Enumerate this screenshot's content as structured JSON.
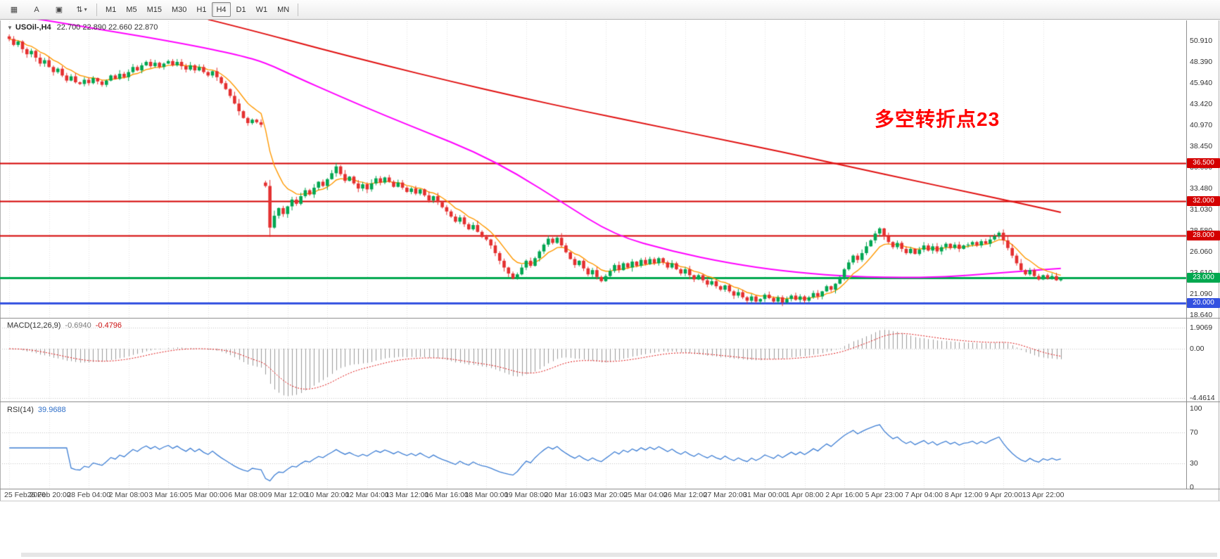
{
  "toolbar": {
    "left_buttons": [
      {
        "name": "chart-grid-icon",
        "glyph": "▦"
      },
      {
        "name": "annotate-a-button",
        "glyph": "A"
      },
      {
        "name": "text-tool-icon",
        "glyph": "▣"
      },
      {
        "name": "cycle-periods-icon",
        "glyph": "⇅",
        "caret": "▾"
      }
    ],
    "timeframes": [
      {
        "label": "M1"
      },
      {
        "label": "M5"
      },
      {
        "label": "M15"
      },
      {
        "label": "M30"
      },
      {
        "label": "H1"
      },
      {
        "label": "H4",
        "active": true
      },
      {
        "label": "D1"
      },
      {
        "label": "W1"
      },
      {
        "label": "MN"
      }
    ]
  },
  "header": {
    "dropdown_glyph": "▼",
    "symbol": "USOil-,H4",
    "ohlc": "22.700 22.890 22.660 22.870"
  },
  "annotation": {
    "text": "多空转折点23",
    "color": "#ff0000"
  },
  "price_scale": {
    "ticks": [
      "50.910",
      "48.390",
      "45.940",
      "43.420",
      "40.970",
      "38.450",
      "36.000",
      "33.480",
      "31.030",
      "28.580",
      "26.060",
      "23.610",
      "21.090",
      "18.640"
    ]
  },
  "level_lines": [
    {
      "price": 36.5,
      "label": "36.500",
      "color": "#d40000",
      "width": 2
    },
    {
      "price": 32.0,
      "label": "32.000",
      "color": "#d40000",
      "width": 2
    },
    {
      "price": 28.0,
      "label": "28.000",
      "color": "#d40000",
      "width": 2
    },
    {
      "price": 23.0,
      "label": "23.000",
      "color": "#00a84f",
      "width": 3
    },
    {
      "price": 20.0,
      "label": "20.000",
      "color": "#3351e0",
      "width": 3
    }
  ],
  "chart_data": {
    "type": "candlestick",
    "symbol": "USOil-",
    "timeframe": "H4",
    "visible_price_range": [
      18.2,
      53.2
    ],
    "candle_up_color": "#00a651",
    "candle_down_color": "#e43030",
    "closes": [
      51.1,
      50.4,
      50.8,
      49.9,
      49.3,
      49.7,
      48.9,
      48.2,
      48.6,
      47.8,
      47.2,
      47.6,
      46.8,
      46.2,
      46.7,
      46.0,
      45.8,
      46.3,
      45.9,
      46.5,
      46.1,
      45.7,
      46.2,
      46.8,
      46.4,
      47.0,
      46.6,
      47.2,
      47.8,
      47.4,
      48.0,
      48.4,
      47.9,
      48.3,
      47.8,
      48.2,
      48.5,
      48.0,
      48.4,
      47.9,
      47.5,
      48.0,
      47.4,
      47.8,
      47.2,
      46.8,
      47.3,
      46.6,
      45.9,
      45.2,
      44.4,
      43.5,
      42.6,
      41.8,
      41.2,
      41.6,
      41.3,
      41.0,
      33.8,
      28.9,
      30.3,
      31.2,
      30.5,
      31.4,
      32.2,
      31.7,
      32.6,
      33.3,
      32.8,
      33.6,
      34.3,
      33.8,
      34.6,
      35.3,
      36.1,
      35.2,
      34.4,
      34.9,
      34.1,
      33.5,
      34.0,
      33.4,
      34.1,
      34.7,
      34.2,
      34.8,
      34.3,
      33.7,
      34.2,
      33.6,
      33.1,
      33.5,
      32.9,
      33.4,
      32.7,
      32.1,
      32.6,
      31.9,
      31.3,
      30.8,
      30.2,
      29.6,
      30.1,
      29.3,
      28.7,
      29.2,
      28.4,
      27.8,
      27.5,
      26.8,
      25.9,
      25.0,
      24.2,
      23.5,
      22.9,
      23.4,
      24.2,
      25.0,
      24.4,
      25.3,
      26.1,
      26.9,
      27.6,
      27.1,
      27.7,
      26.8,
      26.0,
      25.2,
      24.5,
      25.0,
      24.1,
      23.4,
      23.9,
      23.1,
      22.6,
      23.2,
      23.8,
      24.5,
      23.9,
      24.7,
      24.2,
      24.9,
      24.4,
      25.1,
      24.6,
      25.2,
      24.7,
      25.3,
      24.8,
      24.2,
      24.7,
      24.0,
      23.5,
      24.0,
      23.3,
      22.8,
      23.3,
      22.7,
      22.2,
      22.6,
      22.0,
      21.6,
      22.1,
      21.4,
      20.9,
      21.3,
      20.7,
      20.3,
      20.8,
      20.2,
      20.5,
      21.0,
      20.6,
      20.2,
      20.7,
      20.1,
      20.5,
      20.9,
      20.4,
      20.8,
      20.3,
      20.7,
      21.2,
      20.8,
      21.4,
      22.0,
      21.6,
      22.3,
      23.1,
      24.0,
      24.8,
      25.6,
      25.1,
      25.9,
      26.7,
      27.4,
      28.2,
      28.8,
      27.9,
      27.2,
      26.6,
      27.1,
      26.4,
      25.9,
      26.4,
      25.8,
      26.3,
      26.8,
      26.2,
      26.7,
      26.1,
      26.6,
      27.0,
      26.5,
      26.9,
      26.4,
      26.8,
      26.9,
      27.2,
      26.8,
      27.3,
      27.0,
      27.5,
      27.9,
      28.3,
      27.4,
      26.5,
      25.6,
      24.7,
      23.9,
      23.4,
      23.9,
      23.2,
      22.8,
      23.3,
      22.9,
      23.2,
      22.7,
      22.87
    ],
    "gap_opens": {
      "58": 34.2
    },
    "ma_fast_period": 8,
    "ma_fast_color": "#ff9900",
    "ma_slow_color": "#ff00ff",
    "ma_slow_anchors": [
      [
        0,
        54.0
      ],
      [
        20,
        52.3
      ],
      [
        40,
        50.5
      ],
      [
        52,
        49.2
      ],
      [
        58,
        48.3
      ],
      [
        65,
        46.6
      ],
      [
        75,
        44.3
      ],
      [
        85,
        42.1
      ],
      [
        95,
        40.0
      ],
      [
        105,
        37.9
      ],
      [
        115,
        35.2
      ],
      [
        125,
        31.9
      ],
      [
        137,
        28.0
      ],
      [
        150,
        26.1
      ],
      [
        163,
        24.7
      ],
      [
        175,
        23.8
      ],
      [
        188,
        23.2
      ],
      [
        200,
        23.0
      ],
      [
        212,
        23.1
      ],
      [
        222,
        23.5
      ],
      [
        230,
        23.8
      ],
      [
        238,
        24.1
      ]
    ],
    "trendline_color": "#e01010",
    "trendline_anchors": [
      [
        45,
        53.4
      ],
      [
        55,
        52.1
      ],
      [
        70,
        50.0
      ],
      [
        85,
        48.0
      ],
      [
        100,
        46.1
      ],
      [
        115,
        44.3
      ],
      [
        130,
        42.6
      ],
      [
        145,
        41.0
      ],
      [
        160,
        39.4
      ],
      [
        175,
        37.8
      ],
      [
        190,
        36.1
      ],
      [
        205,
        34.4
      ],
      [
        215,
        33.3
      ],
      [
        225,
        32.2
      ],
      [
        232,
        31.4
      ],
      [
        238,
        30.7
      ]
    ],
    "macd": {
      "label": "MACD(12,26,9)",
      "value_main": "-0.6940",
      "value_signal": "-0.4796",
      "fast": 12,
      "slow": 26,
      "signal": 9,
      "scale_labels": [
        "1.9069",
        "0.00",
        "-4.4614"
      ],
      "scale_max": 1.9069,
      "scale_min": -4.4614,
      "histogram_color": "#9a9a9a",
      "signal_color": "#dd1111"
    },
    "rsi": {
      "label": "RSI(14)",
      "value": "39.9688",
      "period": 14,
      "levels": [
        70,
        30
      ],
      "scale_labels": [
        "100",
        "70",
        "30",
        "0"
      ],
      "line_color": "#3f7fd4"
    },
    "time_labels": [
      "25 Feb 2020",
      "26 Feb 20:00",
      "28 Feb 04:00",
      "2 Mar 08:00",
      "3 Mar 16:00",
      "5 Mar 00:00",
      "6 Mar 08:00",
      "9 Mar 12:00",
      "10 Mar 20:00",
      "12 Mar 04:00",
      "13 Mar 12:00",
      "16 Mar 16:00",
      "18 Mar 00:00",
      "19 Mar 08:00",
      "20 Mar 16:00",
      "23 Mar 20:00",
      "25 Mar 04:00",
      "26 Mar 12:00",
      "27 Mar 20:00",
      "31 Mar 00:00",
      "1 Apr 08:00",
      "2 Apr 16:00",
      "5 Apr 23:00",
      "7 Apr 04:00",
      "8 Apr 12:00",
      "9 Apr 20:00",
      "13 Apr 22:00"
    ],
    "bars_per_label": 9
  }
}
